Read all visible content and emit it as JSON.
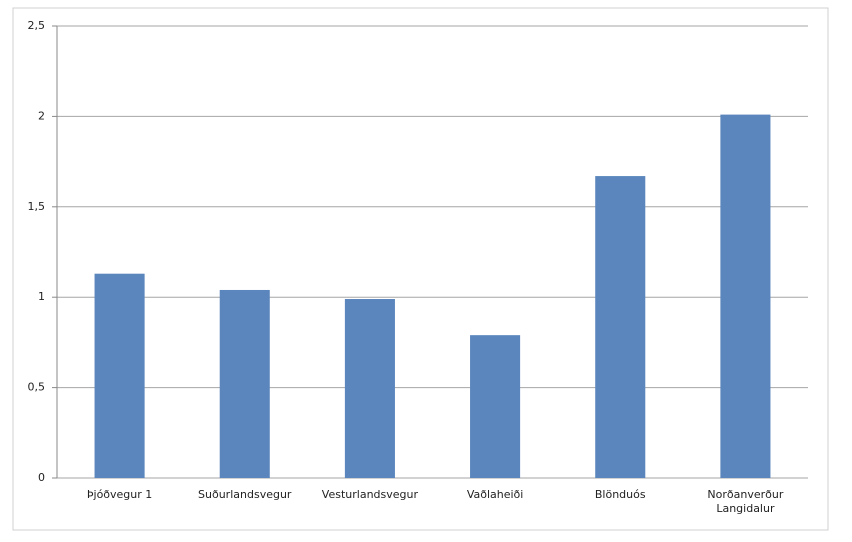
{
  "chart_data": {
    "type": "bar",
    "categories": [
      "Þjóðvegur 1",
      "Suðurlandsvegur",
      "Vesturlandsvegur",
      "Vaðlaheiði",
      "Blönduós",
      "Norðanverður Langidalur"
    ],
    "values": [
      1.13,
      1.04,
      0.99,
      0.79,
      1.67,
      2.01
    ],
    "color": "#5b86bd",
    "ylim": [
      0,
      2.5
    ],
    "yticks": [
      0,
      {
        "value": 0.5,
        "label": "0,5"
      },
      1,
      {
        "value": 1.5,
        "label": "1,5"
      },
      2,
      {
        "value": 2.5,
        "label": "2,5"
      }
    ],
    "grid": true
  }
}
